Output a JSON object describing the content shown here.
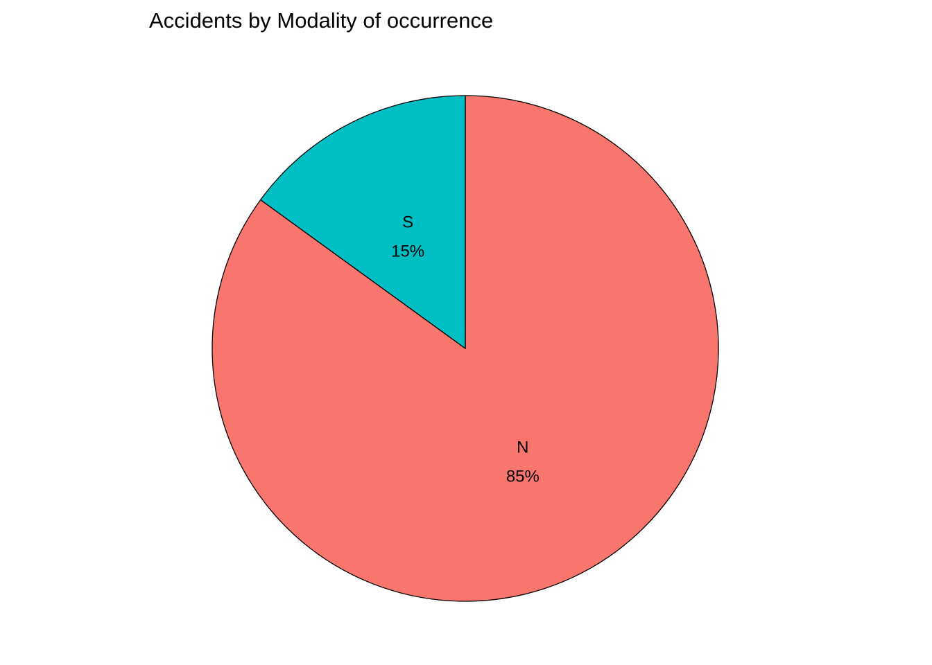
{
  "chart_data": {
    "type": "pie",
    "title": "Accidents by Modality of occurrence",
    "slices": [
      {
        "name": "N",
        "value": 85,
        "label": "85%",
        "color": "#F8766D"
      },
      {
        "name": "S",
        "value": 15,
        "label": "15%",
        "color": "#00BFC4"
      }
    ],
    "start": "12 o'clock",
    "direction": "clockwise",
    "legend": "none"
  }
}
